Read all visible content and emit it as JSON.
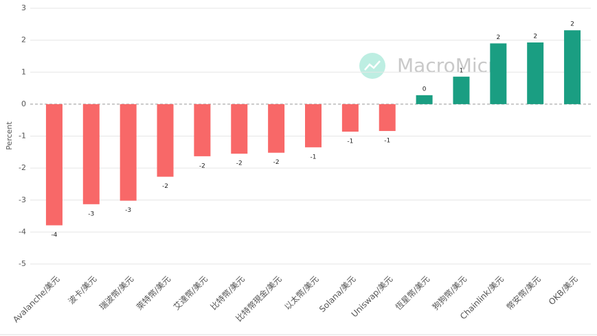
{
  "chart_data": {
    "type": "bar",
    "y_label": "Percent",
    "watermark": "MacroMicro",
    "categories": [
      "Avalanche/美元",
      "波卡/美元",
      "瑞波幣/美元",
      "萊特幣/美元",
      "艾達幣/美元",
      "比特幣/美元",
      "比特幣現金/美元",
      "以太幣/美元",
      "Solana/美元",
      "Uniswap/美元",
      "恆星幣/美元",
      "狗狗幣/美元",
      "Chainlink/美元",
      "幣安幣/美元",
      "OKB/美元"
    ],
    "values": [
      -3.79,
      -3.13,
      -3.02,
      -2.27,
      -1.63,
      -1.55,
      -1.52,
      -1.35,
      -0.86,
      -0.84,
      0.28,
      0.86,
      1.9,
      1.93,
      2.31
    ],
    "value_labels": [
      "-4",
      "-3",
      "-3",
      "-2",
      "-2",
      "-2",
      "-2",
      "-1",
      "-1",
      "-1",
      "0",
      "1",
      "2",
      "2",
      "2"
    ],
    "color_positive": "#1a9e82",
    "color_negative": "#f86868",
    "ylim": [
      -5,
      3
    ],
    "yticks": [
      -5,
      -4,
      -3,
      -2,
      -1,
      0,
      1,
      2,
      3
    ],
    "grid": true
  }
}
